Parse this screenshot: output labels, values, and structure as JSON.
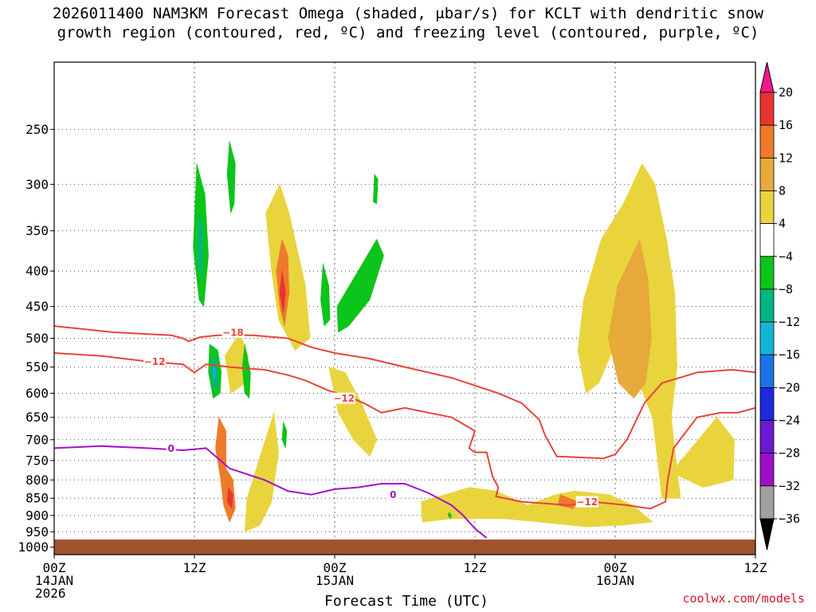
{
  "title": {
    "line1": "2026011400 NAM3KM Forecast Omega (shaded, μbar/s) for KCLT with dendritic snow",
    "line2": "growth region (contoured, red, ºC) and freezing level (contoured, purple, ºC)"
  },
  "watermark": "coolwx.com/models",
  "chart_data": {
    "type": "heatmap",
    "title": "2026011400 NAM3KM Forecast Omega (shaded, μbar/s) for KCLT with dendritic snow growth region (contoured, red, ºC) and freezing level (contoured, purple, ºC)",
    "xlabel": "Forecast Time (UTC)",
    "ylabel": "",
    "x_range_hours": [
      0,
      60
    ],
    "y_range_hpa": [
      1025,
      200
    ],
    "y_scale": "log",
    "grid": true,
    "x_ticks": [
      {
        "hour": 0,
        "label": [
          "00Z",
          "14JAN",
          "2026"
        ]
      },
      {
        "hour": 12,
        "label": [
          "12Z"
        ]
      },
      {
        "hour": 24,
        "label": [
          "00Z",
          "15JAN"
        ]
      },
      {
        "hour": 36,
        "label": [
          "12Z"
        ]
      },
      {
        "hour": 48,
        "label": [
          "00Z",
          "16JAN"
        ]
      },
      {
        "hour": 60,
        "label": [
          "12Z"
        ]
      }
    ],
    "y_ticks": [
      250,
      300,
      350,
      400,
      450,
      500,
      550,
      600,
      650,
      700,
      750,
      800,
      850,
      900,
      950,
      1000
    ],
    "colorbar": {
      "labels": [
        "20",
        "16",
        "12",
        "8",
        "4",
        "−4",
        "−8",
        "−12",
        "−16",
        "−20",
        "−24",
        "−28",
        "−32",
        "−36"
      ],
      "colors": [
        "#f01888",
        "#e8342e",
        "#ee7a2a",
        "#e7a93a",
        "#e9d43e",
        "#ffffff",
        "#0cc41a",
        "#00b584",
        "#11b6d7",
        "#1a74e8",
        "#1d2ae0",
        "#6c18cf",
        "#9c0fc7",
        "#a0a0a0",
        "#000000"
      ]
    },
    "ground": {
      "top_hpa": 975,
      "color": "#a0522d"
    },
    "omega_regions": [
      {
        "level": 4,
        "color": "#e9d43e",
        "points": [
          [
            16.5,
            850
          ],
          [
            18.8,
            640
          ],
          [
            19.2,
            730
          ],
          [
            18.6,
            860
          ],
          [
            17.6,
            930
          ],
          [
            16.3,
            950
          ]
        ]
      },
      {
        "level": 4,
        "color": "#e9d43e",
        "points": [
          [
            14.6,
            530
          ],
          [
            15.9,
            490
          ],
          [
            16.6,
            530
          ],
          [
            16.4,
            580
          ],
          [
            15.1,
            600
          ]
        ]
      },
      {
        "level": 4,
        "color": "#e9d43e",
        "points": [
          [
            18.1,
            330
          ],
          [
            19.3,
            300
          ],
          [
            20.1,
            330
          ],
          [
            21.5,
            420
          ],
          [
            21.9,
            500
          ],
          [
            20.6,
            520
          ],
          [
            19.2,
            470
          ],
          [
            18.6,
            400
          ]
        ]
      },
      {
        "level": 4,
        "color": "#e9d43e",
        "points": [
          [
            23.5,
            550
          ],
          [
            24.9,
            560
          ],
          [
            26.3,
            620
          ],
          [
            27.6,
            700
          ],
          [
            27.0,
            740
          ],
          [
            25.6,
            700
          ],
          [
            24.3,
            640
          ]
        ]
      },
      {
        "level": 4,
        "color": "#e9d43e",
        "points": [
          [
            31.4,
            860
          ],
          [
            35.5,
            820
          ],
          [
            37.8,
            830
          ],
          [
            40.5,
            870
          ],
          [
            42.9,
            840
          ],
          [
            44.5,
            830
          ],
          [
            47.5,
            840
          ],
          [
            49.5,
            870
          ],
          [
            51.2,
            920
          ],
          [
            48.5,
            930
          ],
          [
            45.5,
            935
          ],
          [
            41.5,
            920
          ],
          [
            38.5,
            910
          ],
          [
            34.0,
            910
          ],
          [
            31.5,
            920
          ]
        ]
      },
      {
        "level": 4,
        "color": "#e9d43e",
        "points": [
          [
            45.3,
            440
          ],
          [
            46.8,
            360
          ],
          [
            48.7,
            320
          ],
          [
            50.3,
            280
          ],
          [
            51.4,
            300
          ],
          [
            52.4,
            360
          ],
          [
            53.1,
            430
          ],
          [
            53.3,
            550
          ],
          [
            52.8,
            650
          ],
          [
            53.2,
            750
          ],
          [
            53.6,
            850
          ],
          [
            52.0,
            850
          ],
          [
            51.2,
            650
          ],
          [
            49.5,
            550
          ],
          [
            47.8,
            520
          ],
          [
            46.6,
            580
          ],
          [
            45.5,
            600
          ],
          [
            44.8,
            520
          ]
        ]
      },
      {
        "level": 4,
        "color": "#e9d43e",
        "points": [
          [
            52.8,
            780
          ],
          [
            56.7,
            650
          ],
          [
            58.2,
            700
          ],
          [
            58.1,
            800
          ],
          [
            55.5,
            820
          ]
        ]
      },
      {
        "level": 8,
        "color": "#e7a93a",
        "points": [
          [
            48.2,
            420
          ],
          [
            50.1,
            360
          ],
          [
            50.8,
            410
          ],
          [
            51.1,
            500
          ],
          [
            50.6,
            580
          ],
          [
            49.6,
            610
          ],
          [
            48.3,
            580
          ],
          [
            47.4,
            500
          ]
        ]
      },
      {
        "level": 12,
        "color": "#ee7a2a",
        "points": [
          [
            19.5,
            360
          ],
          [
            20.0,
            380
          ],
          [
            20.1,
            430
          ],
          [
            19.7,
            480
          ],
          [
            19.3,
            450
          ],
          [
            19.0,
            400
          ]
        ]
      },
      {
        "level": 12,
        "color": "#ee7a2a",
        "points": [
          [
            14.1,
            650
          ],
          [
            14.7,
            680
          ],
          [
            14.7,
            770
          ],
          [
            15.3,
            800
          ],
          [
            15.5,
            880
          ],
          [
            15.0,
            920
          ],
          [
            14.5,
            870
          ],
          [
            14.2,
            790
          ],
          [
            13.8,
            720
          ]
        ]
      },
      {
        "level": 12,
        "color": "#ee7a2a",
        "points": [
          [
            43.3,
            840
          ],
          [
            44.8,
            860
          ],
          [
            44.4,
            880
          ],
          [
            43.1,
            870
          ]
        ]
      },
      {
        "level": 16,
        "color": "#e8342e",
        "points": [
          [
            19.5,
            400
          ],
          [
            19.8,
            430
          ],
          [
            19.6,
            460
          ],
          [
            19.3,
            430
          ]
        ]
      },
      {
        "level": 16,
        "color": "#e8342e",
        "points": [
          [
            14.9,
            820
          ],
          [
            15.3,
            840
          ],
          [
            15.2,
            880
          ],
          [
            14.8,
            860
          ]
        ]
      },
      {
        "level": -4,
        "color": "#0cc41a",
        "points": [
          [
            12.2,
            280
          ],
          [
            12.9,
            310
          ],
          [
            13.2,
            380
          ],
          [
            12.8,
            450
          ],
          [
            12.4,
            440
          ],
          [
            11.9,
            370
          ]
        ]
      },
      {
        "level": -4,
        "color": "#0cc41a",
        "points": [
          [
            15.0,
            260
          ],
          [
            15.5,
            280
          ],
          [
            15.4,
            320
          ],
          [
            15.1,
            330
          ],
          [
            14.8,
            290
          ]
        ]
      },
      {
        "level": -4,
        "color": "#0cc41a",
        "points": [
          [
            13.3,
            510
          ],
          [
            14.0,
            520
          ],
          [
            14.3,
            560
          ],
          [
            14.2,
            600
          ],
          [
            13.6,
            610
          ],
          [
            13.2,
            560
          ]
        ]
      },
      {
        "level": -4,
        "color": "#0cc41a",
        "points": [
          [
            16.3,
            510
          ],
          [
            16.8,
            560
          ],
          [
            16.7,
            610
          ],
          [
            16.3,
            600
          ],
          [
            16.1,
            550
          ]
        ]
      },
      {
        "level": -4,
        "color": "#0cc41a",
        "points": [
          [
            19.6,
            660
          ],
          [
            19.9,
            680
          ],
          [
            19.8,
            720
          ],
          [
            19.5,
            700
          ]
        ]
      },
      {
        "level": -4,
        "color": "#0cc41a",
        "points": [
          [
            23.0,
            390
          ],
          [
            23.5,
            420
          ],
          [
            23.6,
            470
          ],
          [
            23.1,
            480
          ],
          [
            22.8,
            440
          ]
        ]
      },
      {
        "level": -4,
        "color": "#0cc41a",
        "points": [
          [
            24.2,
            450
          ],
          [
            26.0,
            400
          ],
          [
            27.6,
            360
          ],
          [
            28.2,
            380
          ],
          [
            27.0,
            440
          ],
          [
            25.2,
            480
          ],
          [
            24.3,
            490
          ]
        ]
      },
      {
        "level": -4,
        "color": "#0cc41a",
        "points": [
          [
            27.4,
            290
          ],
          [
            27.7,
            295
          ],
          [
            27.6,
            320
          ],
          [
            27.3,
            318
          ]
        ]
      },
      {
        "level": -4,
        "color": "#0cc41a",
        "points": [
          [
            33.8,
            890
          ],
          [
            34.0,
            900
          ],
          [
            33.9,
            910
          ],
          [
            33.7,
            900
          ]
        ]
      },
      {
        "level": -12,
        "color": "#00b584",
        "points": [
          [
            12.3,
            330
          ],
          [
            12.7,
            350
          ],
          [
            12.6,
            410
          ],
          [
            12.3,
            390
          ]
        ]
      },
      {
        "level": -12,
        "color": "#00b584",
        "points": [
          [
            13.5,
            530
          ],
          [
            13.9,
            540
          ],
          [
            14.0,
            580
          ],
          [
            13.7,
            595
          ],
          [
            13.4,
            560
          ]
        ]
      },
      {
        "level": -16,
        "color": "#11b6d7",
        "points": [
          [
            13.6,
            550
          ],
          [
            13.8,
            555
          ],
          [
            13.8,
            570
          ],
          [
            13.6,
            572
          ]
        ]
      }
    ],
    "contours": [
      {
        "field": "dendritic snow growth region",
        "color": "#e8443a",
        "value": -18,
        "label": "−18",
        "label_at": [
          15.3,
          490
        ],
        "points": [
          [
            0,
            480
          ],
          [
            5,
            490
          ],
          [
            10,
            495
          ],
          [
            11,
            500
          ],
          [
            11.5,
            505
          ],
          [
            12.5,
            498
          ],
          [
            14,
            495
          ],
          [
            17,
            495
          ],
          [
            20,
            500
          ],
          [
            22,
            515
          ],
          [
            24,
            525
          ],
          [
            27,
            535
          ],
          [
            30,
            550
          ],
          [
            34,
            570
          ],
          [
            38,
            600
          ],
          [
            40,
            620
          ],
          [
            41.5,
            655
          ],
          [
            42,
            690
          ],
          [
            43,
            740
          ],
          [
            47,
            745
          ],
          [
            48,
            735
          ],
          [
            49,
            700
          ],
          [
            50.5,
            620
          ],
          [
            52,
            580
          ],
          [
            55,
            560
          ],
          [
            58,
            555
          ],
          [
            60,
            560
          ]
        ]
      },
      {
        "field": "dendritic snow growth region",
        "color": "#e8443a",
        "value": -12,
        "label": "−12",
        "label_at": [
          8.6,
          540
        ],
        "points": [
          [
            0,
            525
          ],
          [
            4,
            530
          ],
          [
            8,
            540
          ],
          [
            11,
            545
          ],
          [
            12,
            560
          ],
          [
            13,
            545
          ],
          [
            15,
            550
          ],
          [
            18,
            555
          ],
          [
            20,
            565
          ],
          [
            21.5,
            575
          ],
          [
            23.5,
            595
          ],
          [
            25,
            605
          ],
          [
            26.5,
            620
          ],
          [
            28,
            640
          ],
          [
            30,
            630
          ],
          [
            34,
            650
          ],
          [
            36,
            680
          ],
          [
            35.5,
            720
          ],
          [
            36,
            730
          ],
          [
            37,
            730
          ],
          [
            37.5,
            790
          ],
          [
            38,
            820
          ],
          [
            37.8,
            845
          ],
          [
            40,
            860
          ],
          [
            44,
            870
          ],
          [
            46,
            860
          ],
          [
            49,
            870
          ],
          [
            51,
            880
          ],
          [
            52.3,
            860
          ],
          [
            52.5,
            800
          ],
          [
            53,
            720
          ],
          [
            55,
            650
          ],
          [
            57,
            640
          ],
          [
            58.5,
            640
          ],
          [
            60,
            630
          ]
        ]
      },
      {
        "field": "dendritic snow growth region",
        "color": "#e8443a",
        "value": -12,
        "label": "−12",
        "label_at": [
          24.8,
          610
        ],
        "points": []
      },
      {
        "field": "dendritic snow growth region",
        "color": "#e8443a",
        "value": -12,
        "label": "−12",
        "label_at": [
          45.6,
          860
        ],
        "points": []
      },
      {
        "field": "freezing level",
        "color": "#a014c8",
        "value": 0,
        "label": "0",
        "label_at": [
          10.0,
          720
        ],
        "points": [
          [
            0,
            720
          ],
          [
            4,
            715
          ],
          [
            8,
            720
          ],
          [
            11,
            725
          ],
          [
            13,
            720
          ],
          [
            15,
            770
          ],
          [
            17,
            790
          ],
          [
            18,
            800
          ],
          [
            20,
            830
          ],
          [
            22,
            840
          ],
          [
            24,
            825
          ],
          [
            26,
            820
          ],
          [
            28,
            810
          ],
          [
            30,
            810
          ],
          [
            32,
            835
          ],
          [
            34,
            870
          ],
          [
            35,
            900
          ],
          [
            36,
            940
          ],
          [
            37,
            970
          ]
        ]
      },
      {
        "field": "freezing level",
        "color": "#a014c8",
        "value": 0,
        "label": "0",
        "label_at": [
          29.0,
          840
        ],
        "points": []
      }
    ]
  }
}
